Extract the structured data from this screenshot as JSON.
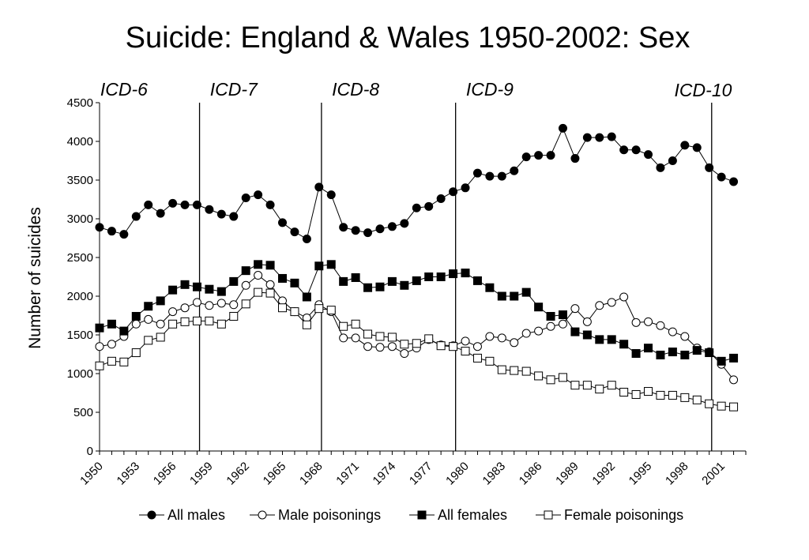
{
  "chart_data": {
    "type": "line",
    "title": "Suicide: England & Wales 1950-2002: Sex",
    "ylabel": "Number of  suicides",
    "xlabel": "",
    "ylim": [
      0,
      4500
    ],
    "yticks": [
      0,
      500,
      1000,
      1500,
      2000,
      2500,
      3000,
      3500,
      4000,
      4500
    ],
    "xlim": [
      1950,
      2003
    ],
    "xticks": [
      1950,
      1953,
      1956,
      1959,
      1962,
      1965,
      1968,
      1971,
      1974,
      1977,
      1980,
      1983,
      1986,
      1989,
      1992,
      1995,
      1998,
      2001
    ],
    "grid": false,
    "legend_position": "bottom",
    "x": [
      1950,
      1951,
      1952,
      1953,
      1954,
      1955,
      1956,
      1957,
      1958,
      1959,
      1960,
      1961,
      1962,
      1963,
      1964,
      1965,
      1966,
      1967,
      1968,
      1969,
      1970,
      1971,
      1972,
      1973,
      1974,
      1975,
      1976,
      1977,
      1978,
      1979,
      1980,
      1981,
      1982,
      1983,
      1984,
      1985,
      1986,
      1987,
      1988,
      1989,
      1990,
      1991,
      1992,
      1993,
      1994,
      1995,
      1996,
      1997,
      1998,
      1999,
      2000,
      2001,
      2002
    ],
    "annotations": [
      {
        "label": "ICD-6",
        "x": 1952
      },
      {
        "label": "ICD-7",
        "x": 1961
      },
      {
        "label": "ICD-8",
        "x": 1971
      },
      {
        "label": "ICD-9",
        "x": 1982
      },
      {
        "label": "ICD-10",
        "x": 1999.5
      }
    ],
    "vlines": [
      1958.2,
      1968.2,
      1979.2,
      2000.2
    ],
    "series": [
      {
        "name": "All males",
        "marker": "filled-circle",
        "values": [
          2890,
          2840,
          2800,
          3030,
          3180,
          3070,
          3200,
          3180,
          3180,
          3120,
          3060,
          3030,
          3270,
          3310,
          3180,
          2950,
          2830,
          2740,
          3410,
          3310,
          2890,
          2850,
          2820,
          2870,
          2900,
          2940,
          3140,
          3160,
          3260,
          3350,
          3400,
          3590,
          3550,
          3550,
          3620,
          3800,
          3820,
          3820,
          4170,
          3780,
          4050,
          4050,
          4060,
          3890,
          3890,
          3830,
          3660,
          3750,
          3950,
          3920,
          3660,
          3540,
          3480
        ]
      },
      {
        "name": "Male poisonings",
        "marker": "open-circle",
        "values": [
          1350,
          1380,
          1480,
          1640,
          1700,
          1640,
          1800,
          1850,
          1920,
          1880,
          1910,
          1890,
          2140,
          2270,
          2150,
          1940,
          1800,
          1720,
          1890,
          1800,
          1460,
          1460,
          1350,
          1340,
          1350,
          1260,
          1330,
          1440,
          1370,
          1360,
          1420,
          1350,
          1480,
          1460,
          1400,
          1520,
          1550,
          1610,
          1640,
          1840,
          1670,
          1880,
          1920,
          1990,
          1660,
          1670,
          1620,
          1540,
          1480,
          1330,
          1280,
          1120,
          920
        ]
      },
      {
        "name": "All females",
        "marker": "filled-square",
        "values": [
          1590,
          1640,
          1550,
          1740,
          1870,
          1940,
          2080,
          2150,
          2120,
          2090,
          2060,
          2190,
          2330,
          2410,
          2400,
          2230,
          2170,
          1990,
          2390,
          2410,
          2190,
          2240,
          2110,
          2120,
          2190,
          2140,
          2200,
          2250,
          2250,
          2290,
          2300,
          2200,
          2110,
          2000,
          2000,
          2050,
          1860,
          1740,
          1760,
          1540,
          1500,
          1440,
          1440,
          1380,
          1260,
          1330,
          1240,
          1280,
          1240,
          1300,
          1270,
          1160,
          1200
        ]
      },
      {
        "name": "Female poisonings",
        "marker": "open-square",
        "values": [
          1100,
          1160,
          1150,
          1270,
          1430,
          1470,
          1640,
          1670,
          1680,
          1680,
          1640,
          1740,
          1900,
          2050,
          2040,
          1850,
          1800,
          1630,
          1840,
          1820,
          1610,
          1640,
          1510,
          1480,
          1470,
          1380,
          1390,
          1450,
          1360,
          1350,
          1290,
          1200,
          1160,
          1050,
          1040,
          1030,
          970,
          920,
          950,
          850,
          850,
          800,
          850,
          760,
          730,
          770,
          720,
          720,
          690,
          660,
          610,
          580,
          570
        ]
      }
    ]
  }
}
